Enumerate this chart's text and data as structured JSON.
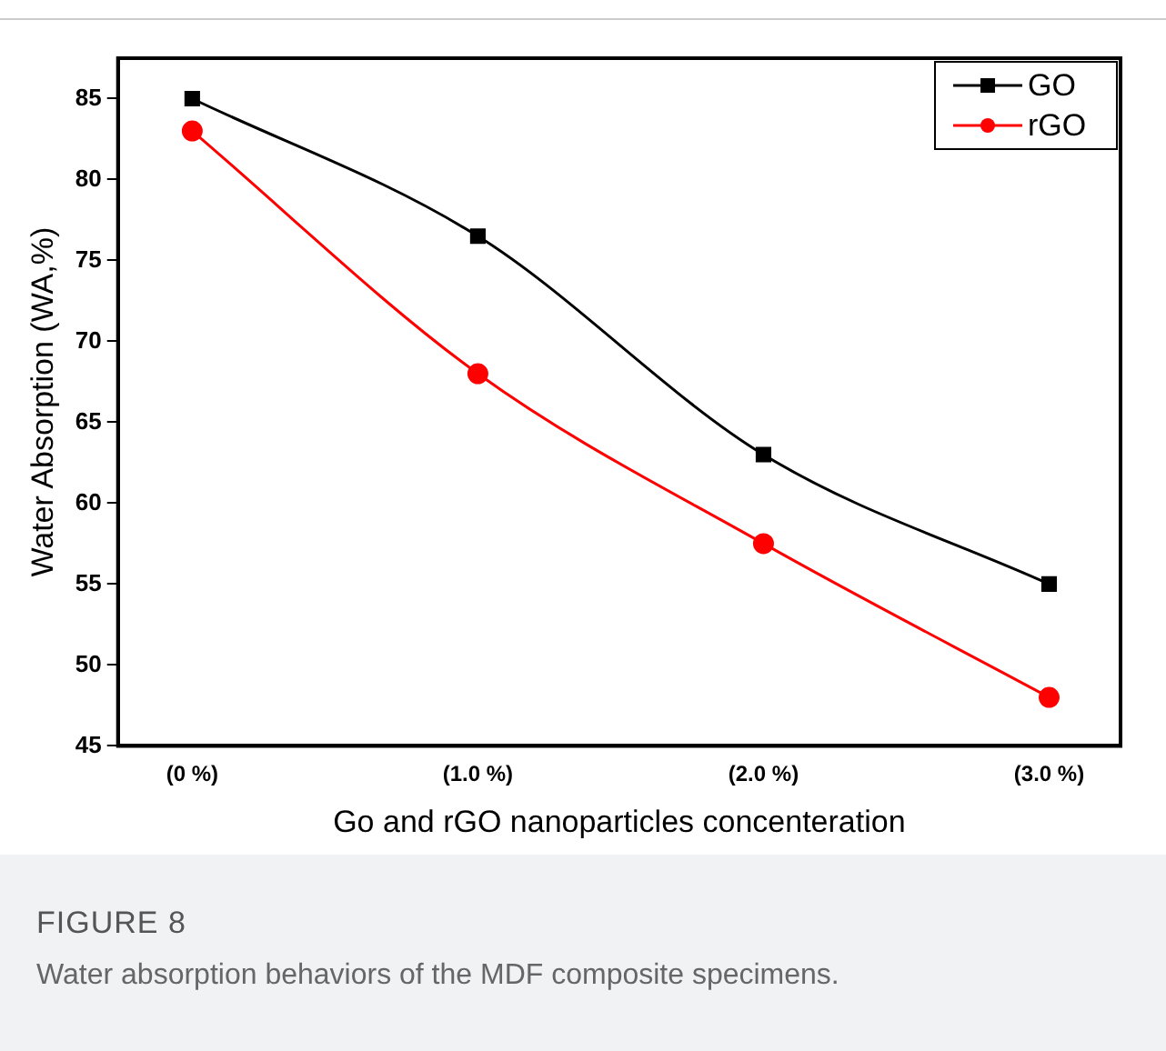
{
  "chart_data": {
    "type": "line",
    "xlabel": "Go and rGO nanoparticles concenteration",
    "ylabel": "Water Absorption (WA,%)",
    "categories": [
      "(0 %)",
      "(1.0 %)",
      "(2.0 %)",
      "(3.0 %)"
    ],
    "series": [
      {
        "name": "GO",
        "color": "#000000",
        "values": [
          85,
          76.5,
          63,
          55
        ],
        "marker": "square"
      },
      {
        "name": "rGO",
        "color": "#ff0000",
        "values": [
          83,
          68,
          57.5,
          48
        ],
        "marker": "circle"
      }
    ],
    "ylim": [
      45,
      87.5
    ],
    "yticks": [
      45,
      50,
      55,
      60,
      65,
      70,
      75,
      80,
      85
    ],
    "grid": false,
    "legend": "top right",
    "annotations": [
      "FIGURE 8",
      "Water absorption behaviors of the MDF composite specimens."
    ]
  }
}
